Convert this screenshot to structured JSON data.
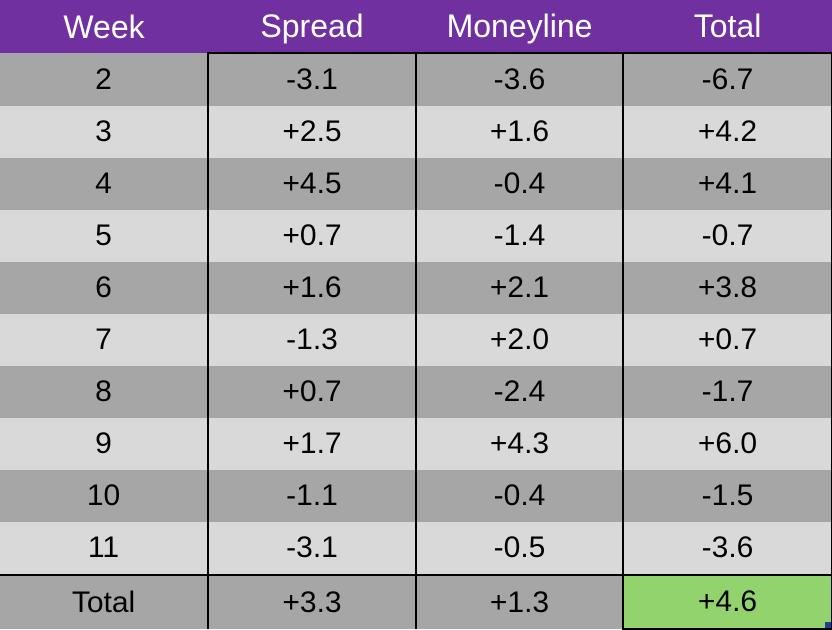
{
  "header": {
    "week": "Week",
    "spread": "Spread",
    "moneyline": "Moneyline",
    "total": "Total"
  },
  "rows": [
    {
      "week": "2",
      "spread": "-3.1",
      "moneyline": "-3.6",
      "total": "-6.7"
    },
    {
      "week": "3",
      "spread": "+2.5",
      "moneyline": "+1.6",
      "total": "+4.2"
    },
    {
      "week": "4",
      "spread": "+4.5",
      "moneyline": "-0.4",
      "total": "+4.1"
    },
    {
      "week": "5",
      "spread": "+0.7",
      "moneyline": "-1.4",
      "total": "-0.7"
    },
    {
      "week": "6",
      "spread": "+1.6",
      "moneyline": "+2.1",
      "total": "+3.8"
    },
    {
      "week": "7",
      "spread": "-1.3",
      "moneyline": "+2.0",
      "total": "+0.7"
    },
    {
      "week": "8",
      "spread": "+0.7",
      "moneyline": "-2.4",
      "total": "-1.7"
    },
    {
      "week": "9",
      "spread": "+1.7",
      "moneyline": "+4.3",
      "total": "+6.0"
    },
    {
      "week": "10",
      "spread": "-1.1",
      "moneyline": "-0.4",
      "total": "-1.5"
    },
    {
      "week": "11",
      "spread": "-3.1",
      "moneyline": "-0.5",
      "total": "-3.6"
    }
  ],
  "footer": {
    "label": "Total",
    "spread": "+3.3",
    "moneyline": "+1.3",
    "total": "+4.6"
  },
  "colors": {
    "header_bg": "#7030a0",
    "row_dark": "#a6a6a6",
    "row_light": "#d9d9d9",
    "highlight": "#92d36e"
  }
}
